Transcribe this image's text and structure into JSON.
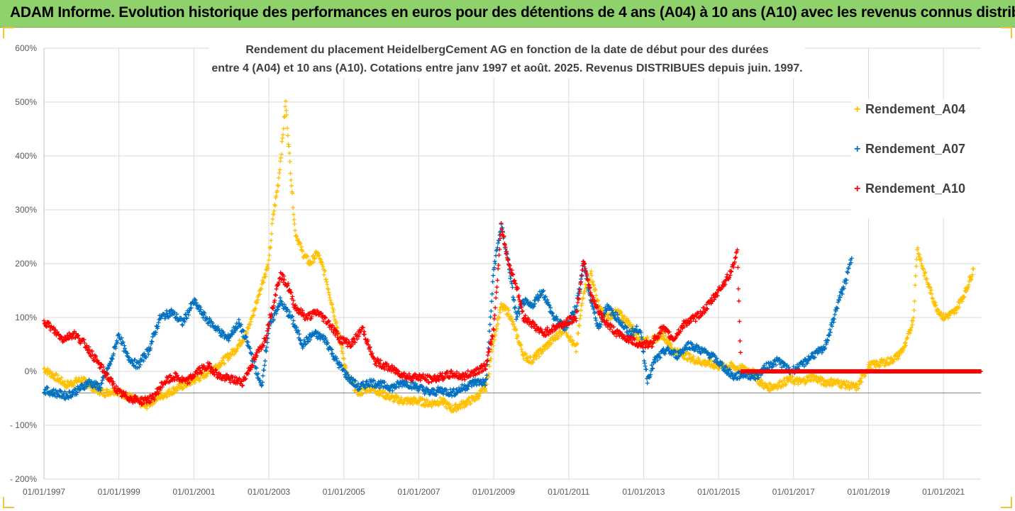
{
  "banner": {
    "title": "ADAM Informe. Evolution historique des performances en euros pour des détentions de 4 ans (A04) à 10 ans (A10) avec les revenus connus distribués"
  },
  "colors": {
    "banner": "#8fd16a",
    "A04": "#ffc000",
    "A07": "#0070c0",
    "A10": "#ff0000"
  },
  "chart_data": {
    "type": "scatter",
    "title_line1": "Rendement du placement HeidelbergCement AG en fonction de la date de début pour des durées",
    "title_line2": "entre 4 (A04) et 10 ans (A10). Cotations entre janv 1997 et août. 2025. Revenus DISTRIBUES depuis juin. 1997.",
    "xlabel": "",
    "ylabel": "",
    "ylim": [
      -200,
      600
    ],
    "xlim": [
      1997.0,
      2022.0
    ],
    "grid": true,
    "legend_position": "top-right",
    "y_ticks": [
      600,
      500,
      400,
      300,
      200,
      100,
      0,
      -100,
      -200
    ],
    "y_tick_labels": [
      "600%",
      "500%",
      "400%",
      "300%",
      "200%",
      "100%",
      "0%",
      "- 100%",
      "- 200%"
    ],
    "x_ticks": [
      1997,
      1999,
      2001,
      2003,
      2005,
      2007,
      2009,
      2011,
      2013,
      2015,
      2017,
      2019,
      2021
    ],
    "x_tick_labels": [
      "01/01/1997",
      "01/01/1999",
      "01/01/2001",
      "01/01/2003",
      "01/01/2005",
      "01/01/2007",
      "01/01/2009",
      "01/01/2011",
      "01/01/2013",
      "01/01/2015",
      "01/01/2017",
      "01/01/2019",
      "01/01/2021"
    ],
    "series": [
      {
        "name": "Rendement_A04",
        "color": "#ffc000",
        "x": [
          1997.0,
          1997.3,
          1997.6,
          1998.0,
          1998.3,
          1998.6,
          1998.9,
          1999.2,
          1999.5,
          1999.7,
          2000.0,
          2000.3,
          2000.6,
          2000.9,
          2001.2,
          2001.5,
          2001.8,
          2002.1,
          2002.4,
          2002.6,
          2002.8,
          2003.0,
          2003.1,
          2003.25,
          2003.35,
          2003.45,
          2003.55,
          2003.7,
          2003.9,
          2004.1,
          2004.3,
          2004.5,
          2004.8,
          2005.1,
          2005.4,
          2005.7,
          2006.0,
          2006.3,
          2006.6,
          2007.0,
          2007.3,
          2007.6,
          2007.9,
          2008.2,
          2008.5,
          2008.8,
          2009.0,
          2009.2,
          2009.4,
          2009.6,
          2009.8,
          2010.0,
          2010.3,
          2010.6,
          2010.9,
          2011.2,
          2011.4,
          2011.6,
          2011.8,
          2012.0,
          2012.3,
          2012.6,
          2012.9,
          2013.2,
          2013.5,
          2013.8,
          2014.1,
          2014.4,
          2014.7,
          2015.0,
          2015.3,
          2015.6,
          2015.9,
          2016.1,
          2016.3,
          2016.6,
          2016.9,
          2017.2,
          2017.5,
          2017.8,
          2018.1,
          2018.4,
          2018.7,
          2019.0,
          2019.3,
          2019.6,
          2019.8,
          2020.0,
          2020.2,
          2020.3,
          2020.5,
          2020.8,
          2021.0,
          2021.3,
          2021.6,
          2021.8
        ],
        "y": [
          5,
          -10,
          -25,
          -15,
          -30,
          -40,
          -35,
          -45,
          -55,
          -65,
          -50,
          -40,
          -30,
          -20,
          -10,
          5,
          20,
          40,
          70,
          110,
          160,
          200,
          280,
          350,
          420,
          500,
          400,
          260,
          220,
          200,
          220,
          180,
          90,
          -10,
          -40,
          -30,
          -40,
          -50,
          -55,
          -55,
          -60,
          -55,
          -70,
          -60,
          -50,
          -30,
          60,
          120,
          110,
          70,
          30,
          20,
          40,
          60,
          80,
          40,
          150,
          180,
          120,
          100,
          110,
          90,
          60,
          55,
          70,
          40,
          30,
          20,
          15,
          10,
          10,
          5,
          0,
          -20,
          -30,
          -25,
          -15,
          -20,
          -10,
          -20,
          -20,
          -25,
          -30,
          10,
          15,
          20,
          30,
          50,
          100,
          230,
          180,
          120,
          100,
          110,
          150,
          190
        ]
      },
      {
        "name": "Rendement_A07",
        "color": "#0070c0",
        "x": [
          1997.0,
          1997.3,
          1997.6,
          1997.9,
          1998.2,
          1998.5,
          1998.8,
          1999.0,
          1999.2,
          1999.5,
          1999.8,
          2000.1,
          2000.4,
          2000.7,
          2001.0,
          2001.3,
          2001.6,
          2001.9,
          2002.2,
          2002.5,
          2002.8,
          2003.0,
          2003.3,
          2003.6,
          2003.9,
          2004.2,
          2004.5,
          2004.8,
          2005.1,
          2005.4,
          2005.7,
          2006.0,
          2006.3,
          2006.6,
          2007.0,
          2007.3,
          2007.6,
          2007.9,
          2008.2,
          2008.5,
          2008.8,
          2009.0,
          2009.2,
          2009.4,
          2009.6,
          2009.8,
          2010.0,
          2010.3,
          2010.6,
          2010.9,
          2011.2,
          2011.4,
          2011.6,
          2011.8,
          2012.0,
          2012.3,
          2012.6,
          2012.9,
          2013.1,
          2013.3,
          2013.6,
          2013.9,
          2014.2,
          2014.5,
          2014.8,
          2015.1,
          2015.4,
          2015.7,
          2016.0,
          2016.3,
          2016.6,
          2016.9,
          2017.2,
          2017.5,
          2017.8,
          2018.0,
          2018.2,
          2018.4,
          2018.55
        ],
        "y": [
          -35,
          -40,
          -45,
          -35,
          -20,
          -30,
          20,
          70,
          30,
          10,
          40,
          100,
          110,
          90,
          130,
          100,
          80,
          60,
          90,
          40,
          -30,
          80,
          130,
          100,
          50,
          70,
          60,
          20,
          -10,
          -30,
          -20,
          -25,
          -30,
          -20,
          -30,
          -40,
          -35,
          -40,
          -30,
          -20,
          -20,
          190,
          270,
          200,
          100,
          130,
          120,
          150,
          100,
          80,
          120,
          200,
          130,
          80,
          120,
          100,
          70,
          80,
          -15,
          20,
          40,
          30,
          50,
          40,
          30,
          10,
          -10,
          -5,
          -10,
          10,
          20,
          0,
          10,
          30,
          40,
          80,
          130,
          170,
          210
        ]
      },
      {
        "name": "Rendement_A10",
        "color": "#ff0000",
        "x": [
          1997.0,
          1997.2,
          1997.5,
          1997.8,
          1998.1,
          1998.4,
          1998.7,
          1999.0,
          1999.3,
          1999.6,
          1999.9,
          2000.2,
          2000.5,
          2000.8,
          2001.1,
          2001.4,
          2001.7,
          2002.0,
          2002.3,
          2002.6,
          2002.9,
          2003.1,
          2003.3,
          2003.5,
          2003.7,
          2004.0,
          2004.3,
          2004.6,
          2004.9,
          2005.2,
          2005.5,
          2005.8,
          2006.1,
          2006.4,
          2006.7,
          2007.0,
          2007.3,
          2007.6,
          2007.9,
          2008.2,
          2008.5,
          2008.8,
          2009.0,
          2009.2,
          2009.4,
          2009.6,
          2009.8,
          2010.0,
          2010.3,
          2010.6,
          2010.9,
          2011.2,
          2011.4,
          2011.6,
          2011.8,
          2012.0,
          2012.3,
          2012.6,
          2012.9,
          2013.2,
          2013.5,
          2013.8,
          2014.1,
          2014.4,
          2014.7,
          2015.0,
          2015.3,
          2015.5,
          2015.6,
          2015.8,
          2016.2,
          2016.8,
          2017.4,
          2018.0,
          2018.6,
          2019.2,
          2019.8,
          2020.4,
          2021.0,
          2021.6,
          2022.0
        ],
        "y": [
          95,
          80,
          60,
          70,
          50,
          20,
          -10,
          -40,
          -50,
          -55,
          -50,
          -20,
          -10,
          -20,
          0,
          10,
          -10,
          -15,
          -20,
          20,
          60,
          120,
          180,
          160,
          120,
          100,
          110,
          90,
          60,
          50,
          80,
          20,
          10,
          0,
          -10,
          -10,
          -15,
          -10,
          -5,
          -10,
          0,
          10,
          80,
          270,
          200,
          160,
          100,
          90,
          70,
          80,
          90,
          100,
          210,
          140,
          110,
          90,
          70,
          60,
          50,
          50,
          80,
          60,
          90,
          100,
          120,
          150,
          180,
          220,
          0,
          0,
          0,
          0,
          0,
          0,
          0,
          0,
          0,
          0,
          0,
          0,
          0
        ]
      }
    ]
  }
}
